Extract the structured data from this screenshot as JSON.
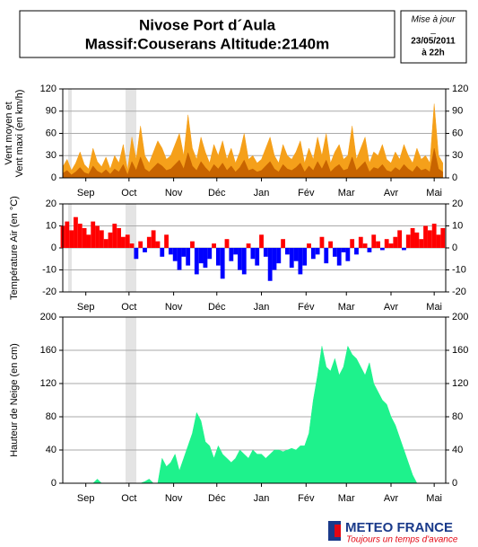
{
  "header": {
    "title": "Nivose Port d´Aula",
    "subtitle": "Massif:Couserans Altitude:2140m",
    "update": [
      "Mise à jour",
      "_",
      "23/05/2011",
      "à 22h"
    ]
  },
  "logo": {
    "name": "METEO FRANCE",
    "tagline": "Toujours un temps d'avance"
  },
  "chart_data": [
    {
      "type": "area",
      "ylabel": [
        "Vent moyen et",
        "Vent maxi (en km/h)"
      ],
      "x": [
        0,
        3,
        6,
        9,
        12,
        15,
        18,
        21,
        24,
        27,
        30,
        33,
        36,
        39,
        42,
        45,
        48,
        51,
        54,
        57,
        60,
        63,
        66,
        69,
        72,
        75,
        78,
        81,
        84,
        87,
        90,
        93,
        96,
        99,
        102,
        105,
        108,
        111,
        114,
        117,
        120,
        123,
        126,
        129,
        132,
        135,
        138,
        141,
        144,
        147,
        150,
        153,
        156,
        159,
        162,
        165,
        168,
        171,
        174,
        177,
        180,
        183,
        186,
        189,
        192,
        195,
        198,
        201,
        204,
        207,
        210,
        213,
        216,
        219,
        222,
        225,
        228,
        231,
        234,
        237,
        240,
        243,
        246,
        249,
        252,
        255,
        258,
        261,
        264
      ],
      "series": [
        {
          "color": "#f5a01a",
          "values": [
            15,
            25,
            10,
            20,
            35,
            18,
            12,
            40,
            22,
            15,
            28,
            12,
            30,
            20,
            45,
            10,
            55,
            25,
            70,
            30,
            20,
            35,
            50,
            40,
            25,
            30,
            45,
            60,
            30,
            85,
            40,
            25,
            55,
            35,
            20,
            45,
            30,
            50,
            25,
            40,
            20,
            35,
            60,
            25,
            30,
            20,
            25,
            40,
            55,
            30,
            20,
            45,
            30,
            25,
            35,
            50,
            20,
            40,
            25,
            55,
            30,
            60,
            20,
            35,
            45,
            25,
            30,
            70,
            25,
            40,
            55,
            20,
            35,
            30,
            45,
            25,
            20,
            35,
            25,
            45,
            30,
            20,
            40,
            25,
            30,
            20,
            100,
            30,
            20
          ]
        },
        {
          "color": "#c86400",
          "values": [
            6,
            10,
            4,
            8,
            14,
            7,
            5,
            16,
            9,
            6,
            11,
            5,
            12,
            8,
            18,
            4,
            22,
            10,
            28,
            12,
            8,
            14,
            20,
            16,
            10,
            12,
            18,
            24,
            12,
            34,
            16,
            10,
            22,
            14,
            8,
            18,
            12,
            20,
            10,
            16,
            8,
            14,
            24,
            10,
            12,
            8,
            10,
            16,
            22,
            12,
            8,
            18,
            12,
            10,
            14,
            20,
            8,
            16,
            10,
            22,
            12,
            24,
            8,
            14,
            18,
            10,
            12,
            28,
            10,
            16,
            22,
            8,
            14,
            12,
            18,
            10,
            8,
            14,
            10,
            18,
            12,
            8,
            16,
            10,
            12,
            8,
            40,
            12,
            8
          ]
        }
      ],
      "xlim": [
        0,
        266
      ],
      "ylim": [
        0,
        120
      ],
      "yticks": [
        0,
        30,
        60,
        90,
        120
      ],
      "grid": true,
      "xticks": [
        {
          "value": 16,
          "label": "Sep"
        },
        {
          "value": 46,
          "label": "Oct"
        },
        {
          "value": 77,
          "label": "Nov"
        },
        {
          "value": 107,
          "label": "Déc"
        },
        {
          "value": 138,
          "label": "Jan"
        },
        {
          "value": 169,
          "label": "Fév"
        },
        {
          "value": 197,
          "label": "Mar"
        },
        {
          "value": 228,
          "label": "Avr"
        },
        {
          "value": 258,
          "label": "Mai"
        }
      ]
    },
    {
      "type": "signed-bar",
      "ylabel": [
        "Température Air (en °C)"
      ],
      "x": [
        0,
        3,
        6,
        9,
        12,
        15,
        18,
        21,
        24,
        27,
        30,
        33,
        36,
        39,
        42,
        45,
        48,
        51,
        54,
        57,
        60,
        63,
        66,
        69,
        72,
        75,
        78,
        81,
        84,
        87,
        90,
        93,
        96,
        99,
        102,
        105,
        108,
        111,
        114,
        117,
        120,
        123,
        126,
        129,
        132,
        135,
        138,
        141,
        144,
        147,
        150,
        153,
        156,
        159,
        162,
        165,
        168,
        171,
        174,
        177,
        180,
        183,
        186,
        189,
        192,
        195,
        198,
        201,
        204,
        207,
        210,
        213,
        216,
        219,
        222,
        225,
        228,
        231,
        234,
        237,
        240,
        243,
        246,
        249,
        252,
        255,
        258,
        261,
        264
      ],
      "series": [
        {
          "color": "#ff0000",
          "negative_color": "#0000ff",
          "values": [
            10,
            12,
            8,
            14,
            11,
            9,
            6,
            12,
            10,
            8,
            4,
            7,
            11,
            9,
            5,
            6,
            2,
            -5,
            3,
            -2,
            5,
            8,
            3,
            -4,
            6,
            -3,
            -6,
            -10,
            -4,
            -8,
            3,
            -12,
            -7,
            -9,
            -5,
            2,
            -8,
            -14,
            4,
            -6,
            -3,
            -10,
            -12,
            2,
            -5,
            -8,
            6,
            -4,
            -15,
            -10,
            -7,
            4,
            -3,
            -9,
            -6,
            -12,
            -8,
            2,
            -5,
            -3,
            5,
            -7,
            3,
            -4,
            -8,
            -2,
            -6,
            4,
            -3,
            5,
            2,
            -2,
            6,
            3,
            -1,
            4,
            2,
            5,
            8,
            -1,
            6,
            9,
            7,
            4,
            10,
            8,
            11,
            6,
            9
          ]
        }
      ],
      "xlim": [
        0,
        266
      ],
      "ylim": [
        -20,
        20
      ],
      "yticks": [
        -20,
        -10,
        0,
        10,
        20
      ],
      "grid": true,
      "xticks": [
        {
          "value": 16,
          "label": "Sep"
        },
        {
          "value": 46,
          "label": "Oct"
        },
        {
          "value": 77,
          "label": "Nov"
        },
        {
          "value": 107,
          "label": "Déc"
        },
        {
          "value": 138,
          "label": "Jan"
        },
        {
          "value": 169,
          "label": "Fév"
        },
        {
          "value": 197,
          "label": "Mar"
        },
        {
          "value": 228,
          "label": "Avr"
        },
        {
          "value": 258,
          "label": "Mai"
        }
      ]
    },
    {
      "type": "area",
      "ylabel": [
        "Hauteur de Neige (en cm)"
      ],
      "x": [
        0,
        3,
        6,
        9,
        12,
        15,
        18,
        21,
        24,
        27,
        30,
        33,
        36,
        39,
        42,
        45,
        48,
        51,
        54,
        57,
        60,
        63,
        66,
        69,
        72,
        75,
        78,
        81,
        84,
        87,
        90,
        93,
        96,
        99,
        102,
        105,
        108,
        111,
        114,
        117,
        120,
        123,
        126,
        129,
        132,
        135,
        138,
        141,
        144,
        147,
        150,
        153,
        156,
        159,
        162,
        165,
        168,
        171,
        174,
        177,
        180,
        183,
        186,
        189,
        192,
        195,
        198,
        201,
        204,
        207,
        210,
        213,
        216,
        219,
        222,
        225,
        228,
        231,
        234,
        237,
        240,
        243,
        246,
        249,
        252,
        255,
        258,
        261,
        264
      ],
      "series": [
        {
          "color": "#1ef28c",
          "values": [
            0,
            0,
            0,
            0,
            0,
            0,
            0,
            0,
            5,
            0,
            0,
            0,
            0,
            0,
            0,
            null,
            null,
            null,
            0,
            2,
            5,
            0,
            0,
            30,
            20,
            25,
            35,
            15,
            30,
            45,
            60,
            85,
            75,
            50,
            45,
            30,
            45,
            35,
            30,
            25,
            30,
            40,
            35,
            30,
            40,
            35,
            35,
            30,
            35,
            40,
            40,
            38,
            40,
            42,
            40,
            45,
            45,
            60,
            100,
            130,
            165,
            140,
            135,
            150,
            130,
            140,
            165,
            155,
            150,
            140,
            130,
            145,
            120,
            110,
            100,
            95,
            80,
            70,
            55,
            40,
            25,
            10,
            0,
            0,
            0,
            0,
            0,
            0,
            0
          ]
        }
      ],
      "xlim": [
        0,
        266
      ],
      "ylim": [
        0,
        200
      ],
      "yticks": [
        0,
        40,
        80,
        120,
        160,
        200
      ],
      "grid": true,
      "xticks": [
        {
          "value": 16,
          "label": "Sep"
        },
        {
          "value": 46,
          "label": "Oct"
        },
        {
          "value": 77,
          "label": "Nov"
        },
        {
          "value": 107,
          "label": "Déc"
        },
        {
          "value": 138,
          "label": "Jan"
        },
        {
          "value": 169,
          "label": "Fév"
        },
        {
          "value": 197,
          "label": "Mar"
        },
        {
          "value": 228,
          "label": "Avr"
        },
        {
          "value": 258,
          "label": "Mai"
        }
      ]
    }
  ]
}
